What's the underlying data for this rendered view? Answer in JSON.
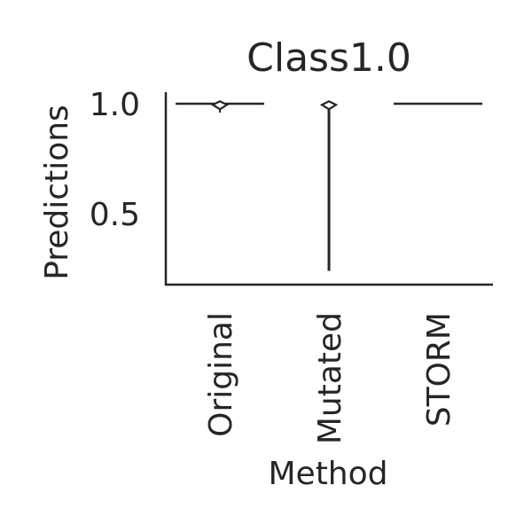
{
  "chart_data": {
    "type": "violin",
    "title": "Class1.0",
    "xlabel": "Method",
    "ylabel": "Predictions",
    "categories": [
      "Original",
      "Mutated",
      "STORM"
    ],
    "y_ticks": [
      1.0,
      0.5
    ],
    "y_tick_labels": [
      "1.0",
      "0.5"
    ],
    "ylim": [
      0.2,
      1.05
    ],
    "grid": false,
    "series": [
      {
        "category": "Original",
        "min": 0.96,
        "max": 1.0,
        "median": 0.995
      },
      {
        "category": "Mutated",
        "min": 0.24,
        "max": 1.0,
        "median": 0.995
      },
      {
        "category": "STORM",
        "min": 1.0,
        "max": 1.0,
        "median": 1.0
      }
    ],
    "colors": {
      "line": "#262626",
      "background": "#ffffff"
    }
  }
}
